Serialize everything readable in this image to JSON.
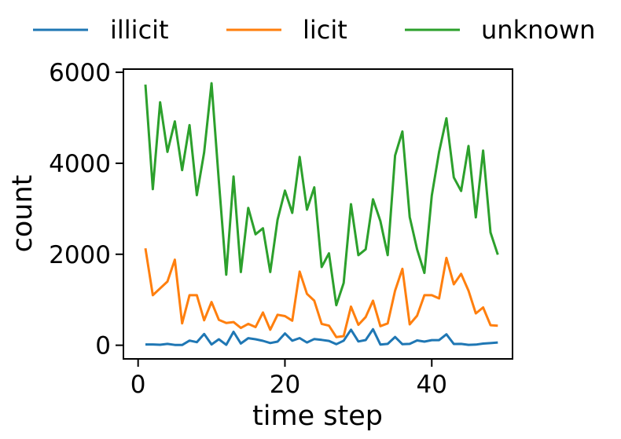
{
  "chart_data": {
    "type": "line",
    "title": "",
    "xlabel": "time step",
    "ylabel": "count",
    "xlim": [
      -2,
      51
    ],
    "ylim": [
      -300,
      6070
    ],
    "xticks": [
      0,
      20,
      40
    ],
    "yticks": [
      0,
      2000,
      4000,
      6000
    ],
    "x_tick_labels": [
      "0",
      "20",
      "40"
    ],
    "y_tick_labels": [
      "0",
      "2000",
      "4000",
      "6000"
    ],
    "grid": false,
    "legend_placement": "top, outside plot, horizontal",
    "x": [
      1,
      2,
      3,
      4,
      5,
      6,
      7,
      8,
      9,
      10,
      11,
      12,
      13,
      14,
      15,
      16,
      17,
      18,
      19,
      20,
      21,
      22,
      23,
      24,
      25,
      26,
      27,
      28,
      29,
      30,
      31,
      32,
      33,
      34,
      35,
      36,
      37,
      38,
      39,
      40,
      41,
      42,
      43,
      44,
      45,
      46,
      47,
      48,
      49
    ],
    "series": [
      {
        "name": "illicit",
        "color": "#1f77b4",
        "values": [
          17,
          18,
          11,
          30,
          8,
          5,
          102,
          67,
          248,
          18,
          131,
          9,
          295,
          39,
          155,
          132,
          97,
          49,
          80,
          260,
          100,
          158,
          61,
          137,
          118,
          96,
          23,
          100,
          342,
          84,
          115,
          352,
          16,
          29,
          182,
          22,
          30,
          105,
          79,
          112,
          112,
          241,
          28,
          30,
          9,
          14,
          36,
          47,
          60
        ]
      },
      {
        "name": "licit",
        "color": "#ff7f0e",
        "values": [
          2130,
          1100,
          1250,
          1400,
          1880,
          480,
          1100,
          1100,
          550,
          950,
          560,
          490,
          510,
          380,
          470,
          400,
          720,
          340,
          670,
          640,
          540,
          1620,
          1130,
          980,
          470,
          430,
          180,
          200,
          850,
          450,
          620,
          980,
          420,
          480,
          1200,
          1680,
          460,
          650,
          1100,
          1100,
          1030,
          1920,
          1340,
          1570,
          1200,
          700,
          830,
          440,
          430
        ]
      },
      {
        "name": "unknown",
        "color": "#2ca02c",
        "values": [
          5730,
          3430,
          5340,
          4250,
          4920,
          3850,
          4840,
          3300,
          4240,
          5760,
          3610,
          1550,
          3710,
          1610,
          3020,
          2440,
          2570,
          1610,
          2760,
          3400,
          2910,
          4140,
          2980,
          3470,
          1720,
          2020,
          880,
          1370,
          3100,
          1980,
          2110,
          3210,
          2730,
          1980,
          4170,
          4700,
          2820,
          2110,
          1590,
          3290,
          4250,
          4990,
          3690,
          3390,
          4380,
          2810,
          4280,
          2480,
          1990
        ]
      }
    ]
  }
}
